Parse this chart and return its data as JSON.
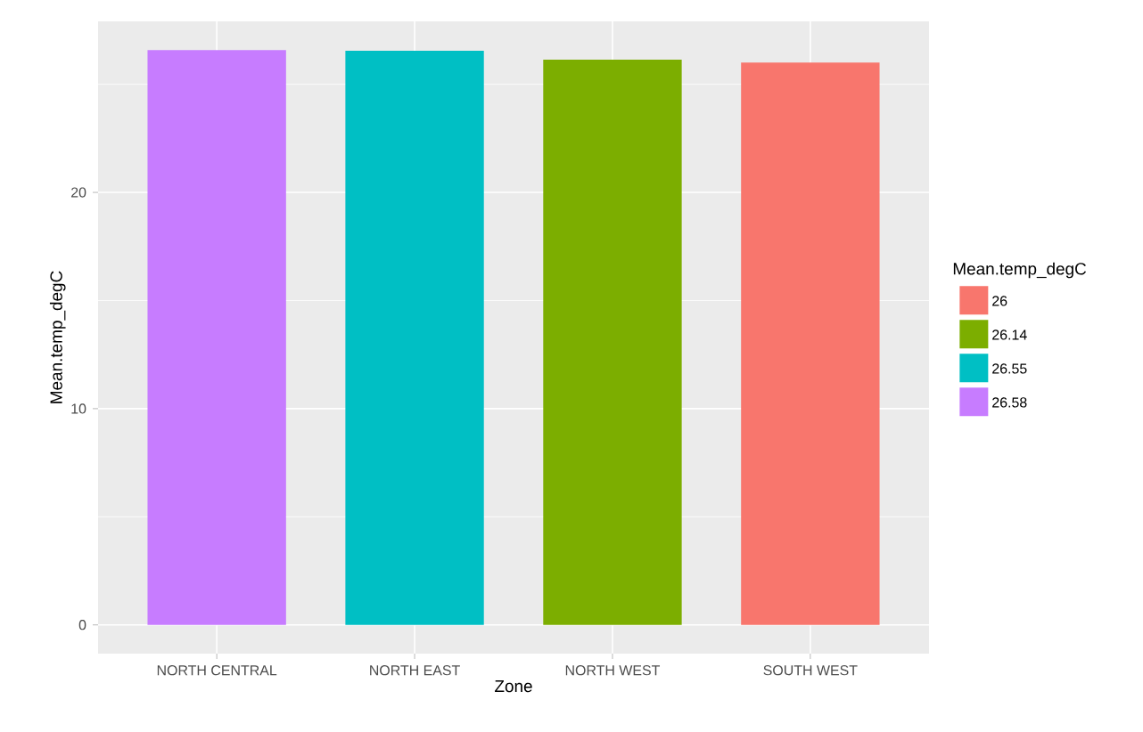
{
  "chart_data": {
    "type": "bar",
    "xlabel": "Zone",
    "ylabel": "Mean.temp_degC",
    "legend_title": "Mean.temp_degC",
    "categories": [
      "NORTH CENTRAL",
      "NORTH EAST",
      "NORTH WEST",
      "SOUTH WEST"
    ],
    "series": [
      {
        "name": "26",
        "color": "#f8766d",
        "values": [
          null,
          null,
          null,
          26
        ]
      },
      {
        "name": "26.14",
        "color": "#7cae00",
        "values": [
          null,
          null,
          26.14,
          null
        ]
      },
      {
        "name": "26.55",
        "color": "#00bfc4",
        "values": [
          null,
          26.55,
          null,
          null
        ]
      },
      {
        "name": "26.58",
        "color": "#c77cff",
        "values": [
          26.58,
          null,
          null,
          null
        ]
      }
    ],
    "ylim": [
      -1.329,
      27.909
    ],
    "yticks": [
      0,
      {
        "value": 5,
        "label": null
      },
      10,
      {
        "value": 15,
        "label": null
      },
      20,
      {
        "value": 25,
        "label": null
      }
    ],
    "grid": true,
    "legend": "right"
  }
}
